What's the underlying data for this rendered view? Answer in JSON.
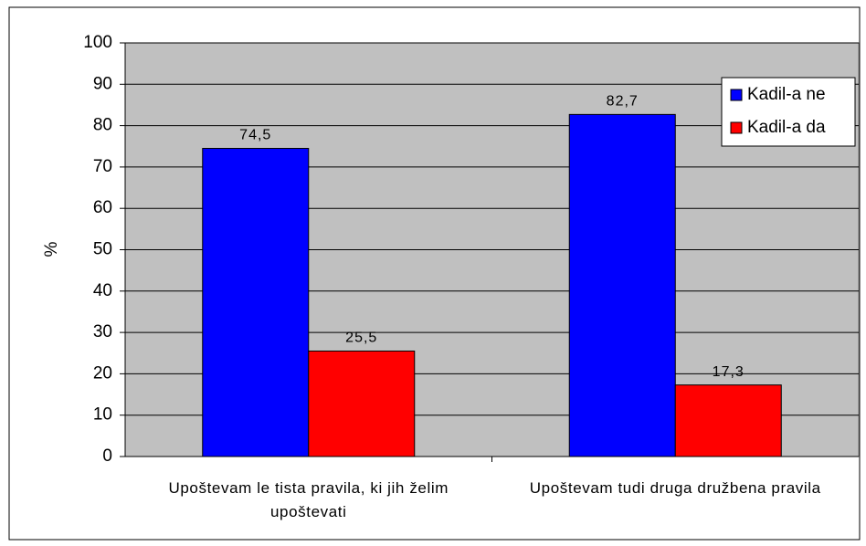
{
  "chart_data": {
    "type": "bar",
    "categories": [
      "Upoštevam le tista pravila, ki jih želim upoštevati",
      "Upoštevam tudi druga družbena pravila"
    ],
    "ylabel": "%",
    "series": [
      {
        "name": "Kadil-a ne",
        "color": "#0000ff",
        "values": [
          74.5,
          82.7
        ],
        "value_labels": [
          "74,5",
          "82,7"
        ]
      },
      {
        "name": "Kadil-a da",
        "color": "#ff0000",
        "values": [
          25.5,
          17.3
        ],
        "value_labels": [
          "25,5",
          "17,3"
        ]
      }
    ],
    "ylim": [
      0,
      100
    ],
    "yticks": [
      0,
      10,
      20,
      30,
      40,
      50,
      60,
      70,
      80,
      90,
      100
    ],
    "grid": true,
    "legend": "upper right",
    "background": "#c0c0c0"
  }
}
